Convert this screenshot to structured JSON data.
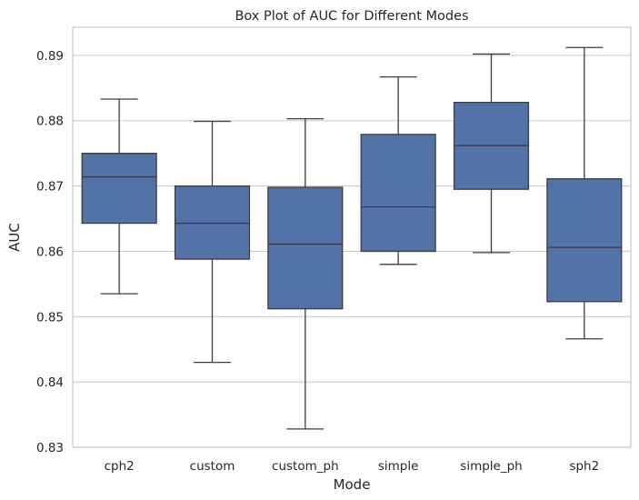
{
  "chart_data": {
    "type": "box",
    "title": "Box Plot of AUC for Different Modes",
    "xlabel": "Mode",
    "ylabel": "AUC",
    "ylim": [
      0.83,
      0.8943
    ],
    "yticks": [
      "0.83",
      "0.84",
      "0.85",
      "0.86",
      "0.87",
      "0.88",
      "0.89"
    ],
    "grid": "horizontal",
    "colors": {
      "box": "#5372a8",
      "line": "#3d3d3d",
      "grid": "#cccccc",
      "frame": "#cccccc"
    },
    "categories": [
      "cph2",
      "custom",
      "custom_ph",
      "simple",
      "simple_ph",
      "sph2"
    ],
    "boxes": [
      {
        "min": 0.8535,
        "q1": 0.8643,
        "median": 0.8714,
        "q3": 0.875,
        "max": 0.8833
      },
      {
        "min": 0.843,
        "q1": 0.8588,
        "median": 0.8643,
        "q3": 0.87,
        "max": 0.8799
      },
      {
        "min": 0.8328,
        "q1": 0.8512,
        "median": 0.8611,
        "q3": 0.8698,
        "max": 0.8803
      },
      {
        "min": 0.858,
        "q1": 0.86,
        "median": 0.8668,
        "q3": 0.8779,
        "max": 0.8867
      },
      {
        "min": 0.8598,
        "q1": 0.8695,
        "median": 0.8762,
        "q3": 0.8828,
        "max": 0.8902
      },
      {
        "min": 0.8466,
        "q1": 0.8523,
        "median": 0.8606,
        "q3": 0.8711,
        "max": 0.8912
      }
    ]
  }
}
